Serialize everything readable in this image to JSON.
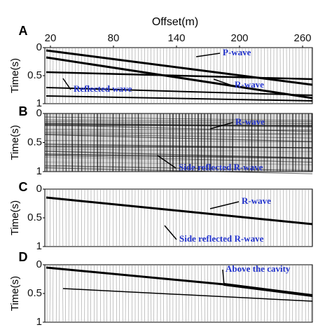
{
  "figure": {
    "x_axis": {
      "label": "Offset(m)",
      "lim": [
        20,
        260
      ],
      "ticks": [
        20,
        80,
        140,
        200,
        260
      ]
    },
    "panels": [
      {
        "label": "A",
        "y_label": "Time(s)",
        "ylim": [
          0,
          1
        ],
        "yticks": [
          0,
          0.5,
          1
        ],
        "annotations": [
          "P-wave",
          "R-wave",
          "Reflected wave"
        ]
      },
      {
        "label": "B",
        "y_label": "Time(s)",
        "ylim": [
          0,
          1
        ],
        "yticks": [
          0,
          0.5,
          1
        ],
        "annotations": [
          "R-wave",
          "Side reflected R-wave"
        ]
      },
      {
        "label": "C",
        "y_label": "Time(s)",
        "ylim": [
          0,
          1
        ],
        "yticks": [
          0,
          0.5,
          1
        ],
        "annotations": [
          "R-wave",
          "Side reflected R-wave"
        ]
      },
      {
        "label": "D",
        "y_label": "Time(s)",
        "ylim": [
          0,
          1
        ],
        "yticks": [
          0,
          0.5,
          1
        ],
        "annotations": [
          "Above the cavity"
        ]
      }
    ]
  }
}
